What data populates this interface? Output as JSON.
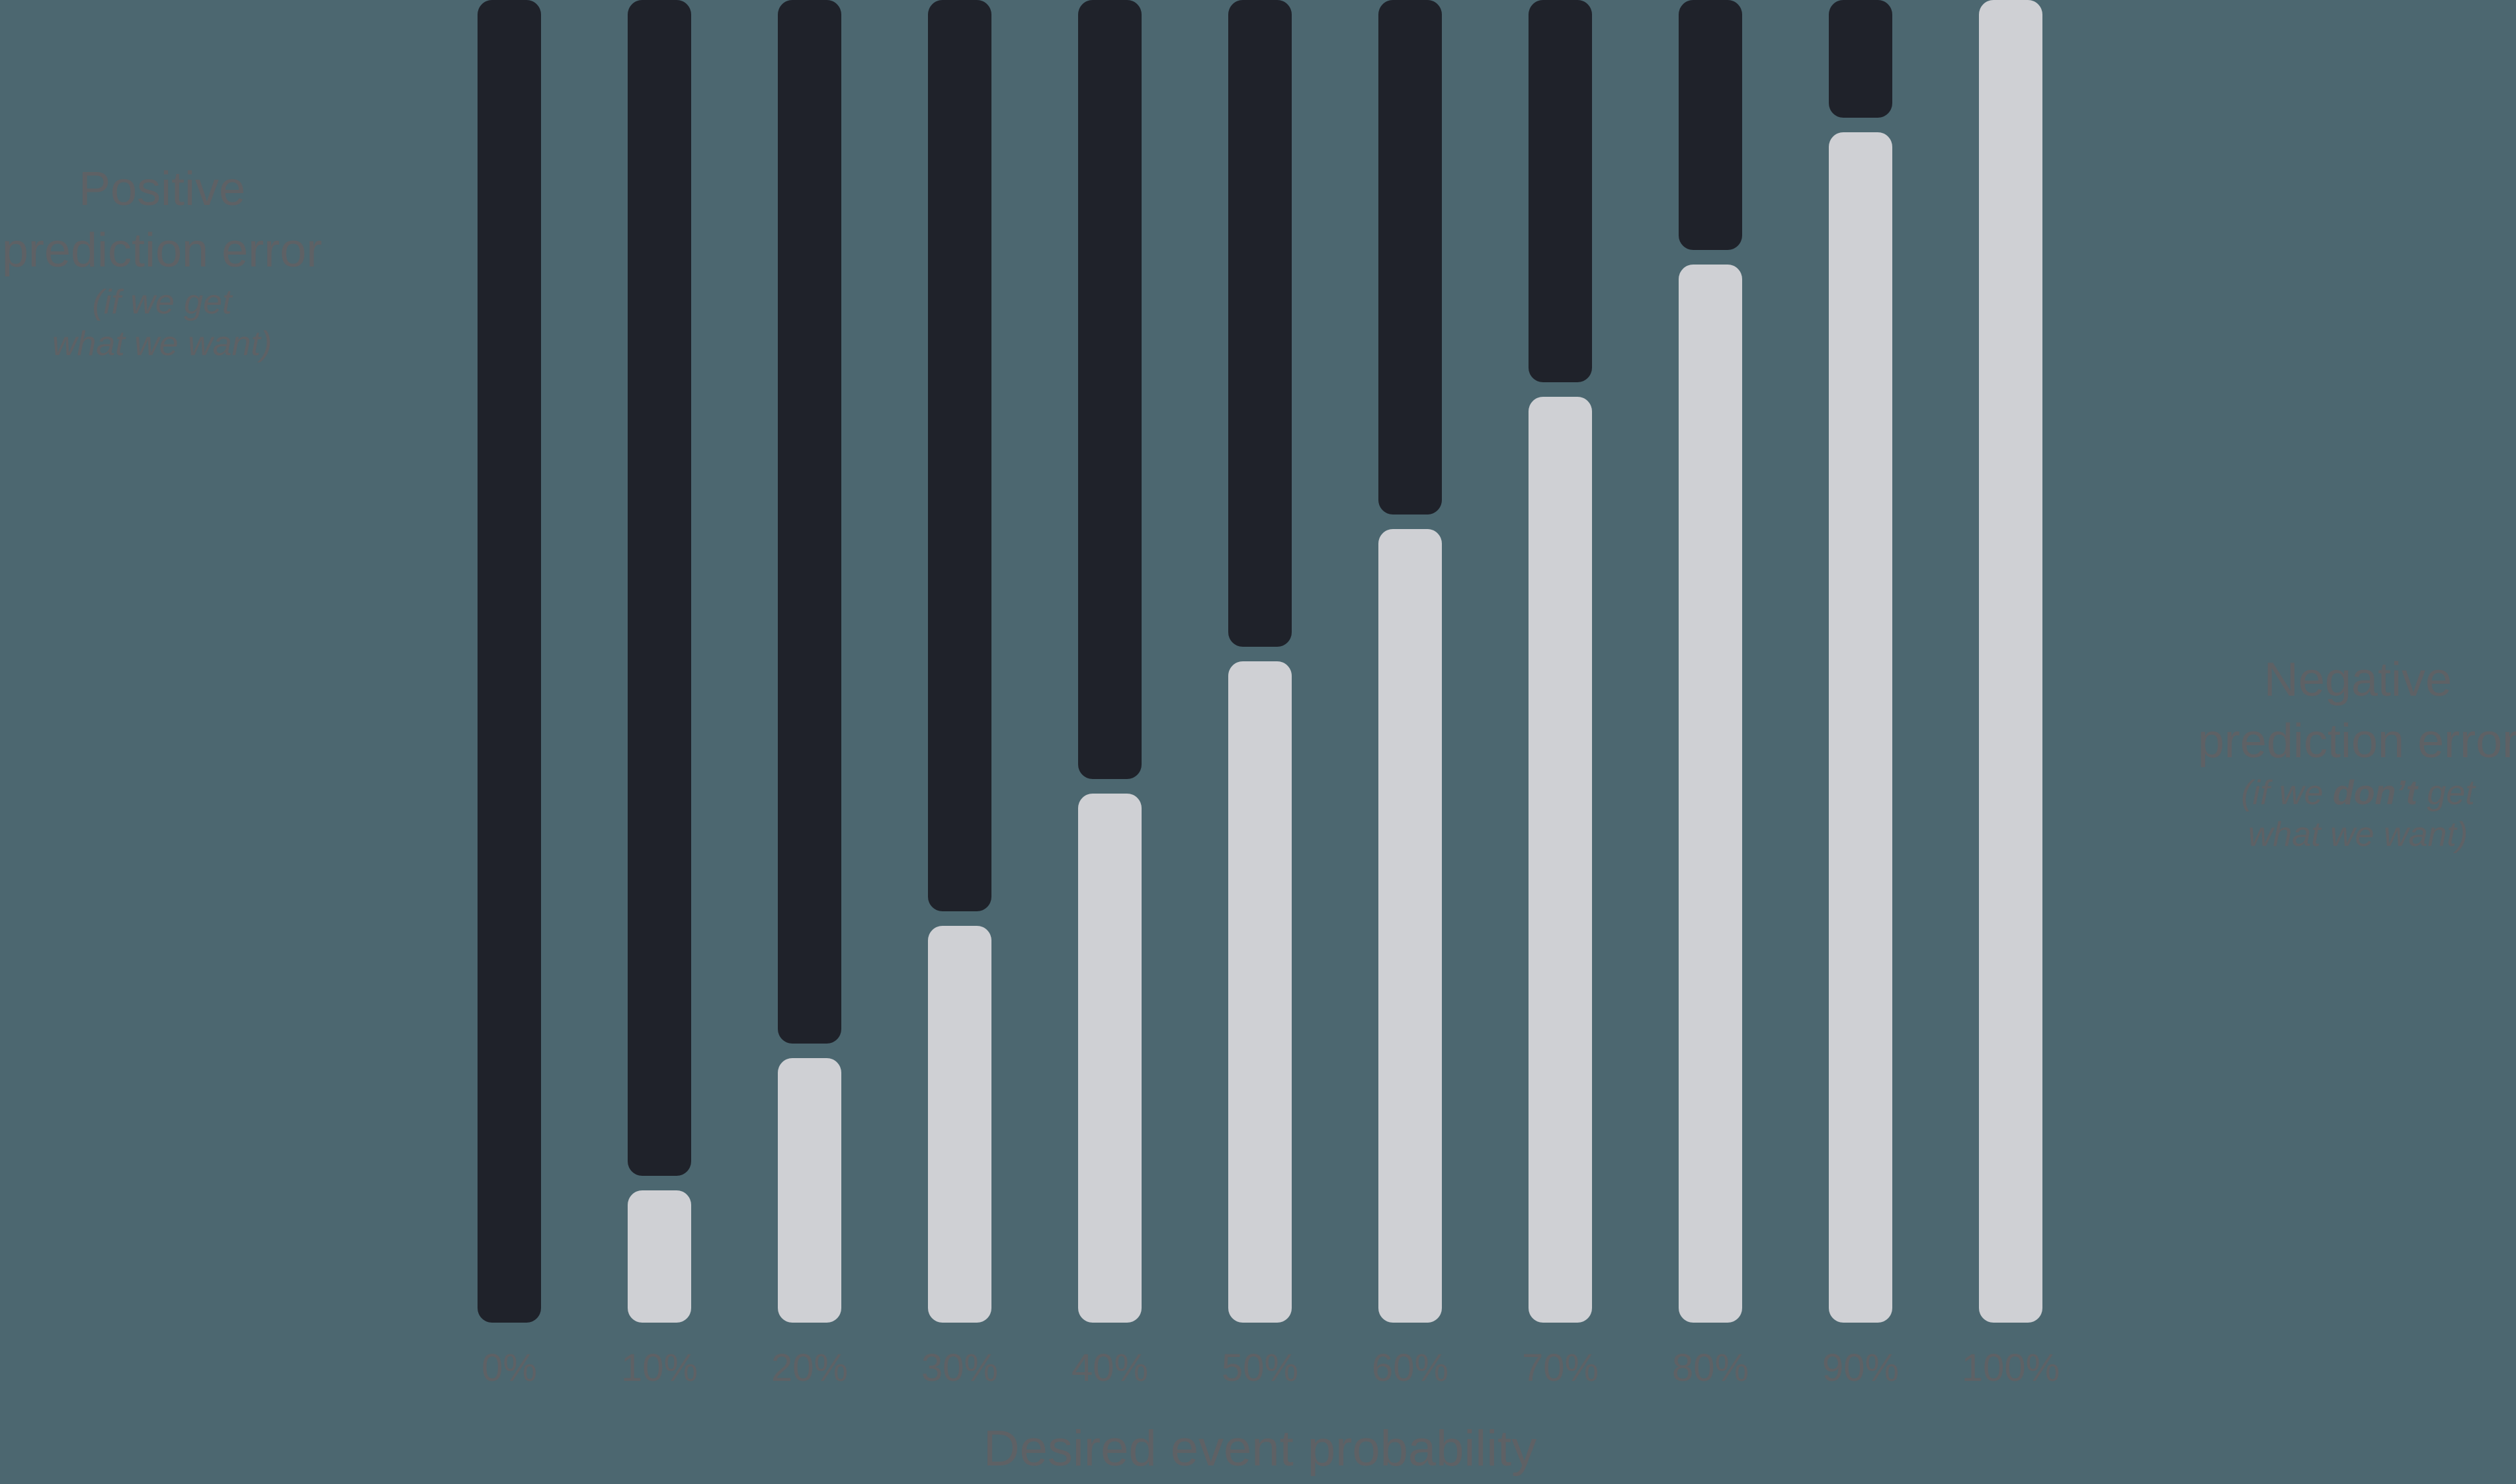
{
  "colors": {
    "background": "#4c6770",
    "positive_bar": "#1f222a",
    "negative_bar": "#cfd0d4",
    "text": "#5e6165"
  },
  "annotations": {
    "left": {
      "line1": "Positive",
      "line2": "prediction error",
      "sub_line1": "(if we get",
      "sub_line2": "what we want)"
    },
    "right": {
      "line1": "Negative",
      "line2": "prediction error",
      "sub1_pre": "(if we ",
      "sub1_bold": "don’t",
      "sub1_post": " get",
      "sub_line2": "what we want)"
    }
  },
  "chart_data": {
    "type": "bar",
    "subtype": "opposed-vertical-pairs",
    "title": "",
    "xlabel": "Desired event probability",
    "ylabel": "",
    "grid": false,
    "legend_position": "annotations-left-right",
    "categories": [
      "0%",
      "10%",
      "20%",
      "30%",
      "40%",
      "50%",
      "60%",
      "70%",
      "80%",
      "90%",
      "100%"
    ],
    "x_values_percent": [
      0,
      10,
      20,
      30,
      40,
      50,
      60,
      70,
      80,
      90,
      100
    ],
    "series": [
      {
        "name": "Positive prediction error (if we get what we want)",
        "anchor": "top",
        "color": "#1f222a",
        "values": [
          100,
          90,
          80,
          70,
          60,
          50,
          40,
          30,
          20,
          10,
          0
        ]
      },
      {
        "name": "Negative prediction error (if we don’t get what we want)",
        "anchor": "bottom",
        "color": "#cfd0d4",
        "values": [
          0,
          10,
          20,
          30,
          40,
          50,
          60,
          70,
          80,
          90,
          100
        ]
      }
    ],
    "value_units": "percent of full column height"
  }
}
